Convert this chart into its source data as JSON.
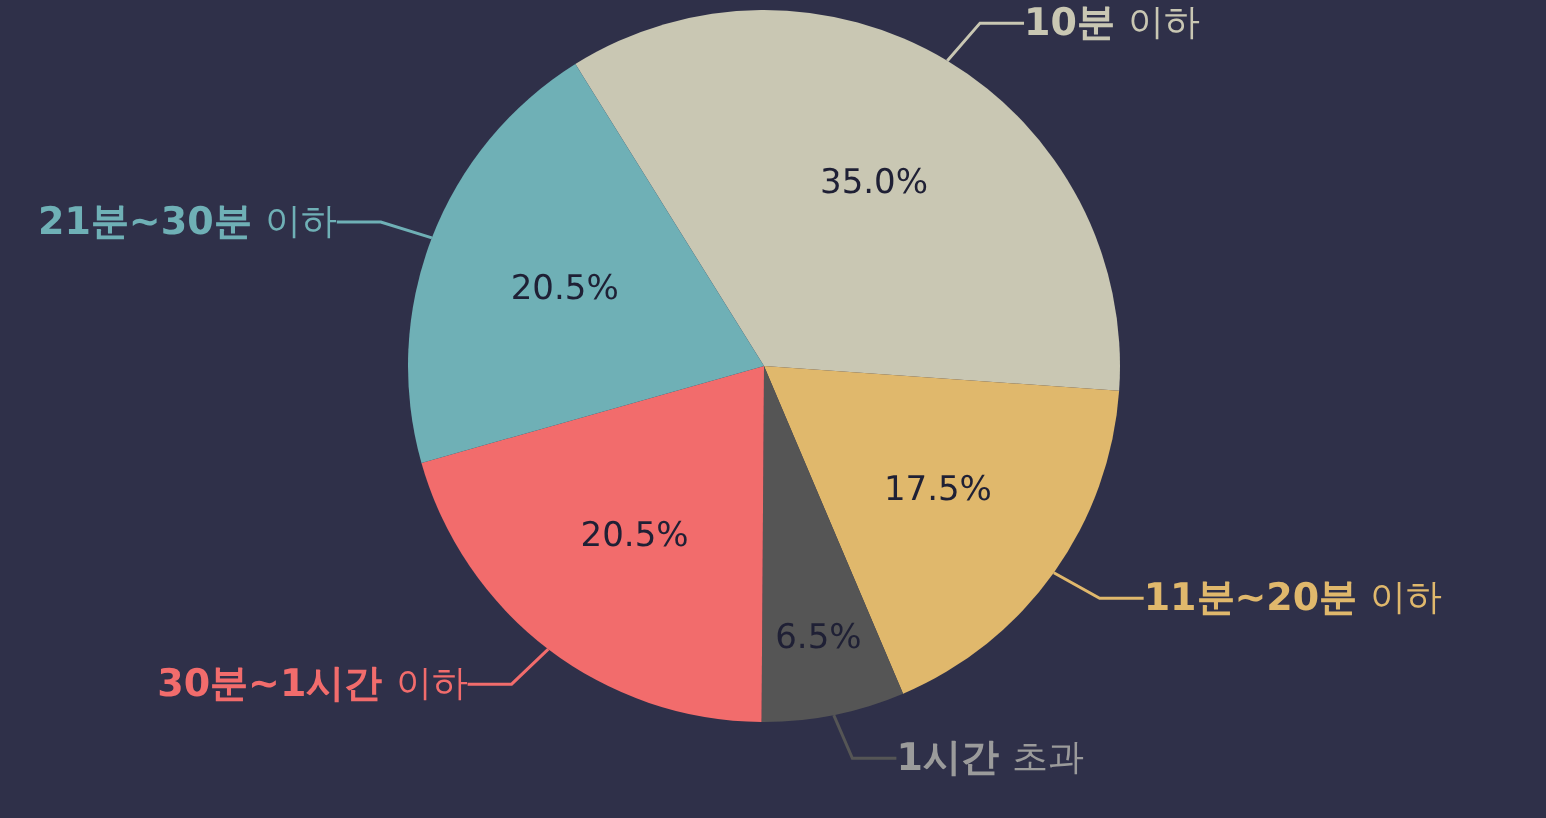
{
  "chart_data": {
    "type": "pie",
    "categories": [
      "10분 이하",
      "11분~20분 이하",
      "1시간 초과",
      "30분~1시간 이하",
      "21분~30분 이하"
    ],
    "values": [
      35.0,
      17.5,
      6.5,
      20.5,
      20.5
    ],
    "colors": [
      "#c9c7b3",
      "#e0b86c",
      "#555555",
      "#f26c6c",
      "#6fb0b6"
    ],
    "value_labels": [
      "35.0%",
      "17.5%",
      "6.5%",
      "20.5%",
      "20.5%"
    ],
    "legend": false
  }
}
